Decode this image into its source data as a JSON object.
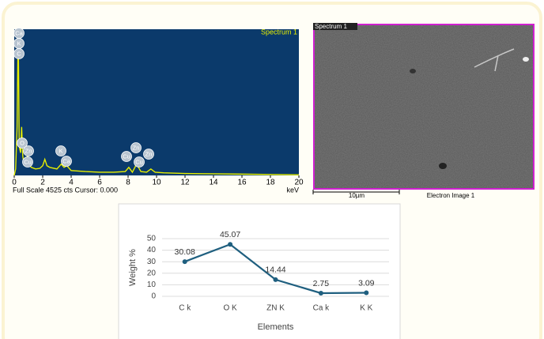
{
  "chart_data": [
    {
      "type": "spectrum",
      "title": "Spectrum 1",
      "x_label": "keV",
      "footer": "Full Scale 4525 cts Cursor: 0.000",
      "color": "#e8f000",
      "background": "#0b3a6b",
      "x": [
        0,
        0.1,
        0.2,
        0.28,
        0.35,
        0.45,
        0.52,
        0.6,
        0.7,
        0.85,
        0.93,
        1.0,
        1.2,
        1.5,
        1.8,
        2.0,
        2.15,
        2.3,
        2.5,
        3.0,
        3.3,
        3.5,
        3.7,
        4.0,
        5,
        6,
        7,
        7.8,
        8.05,
        8.3,
        8.6,
        8.9,
        9.3,
        9.6,
        9.9,
        10.5,
        12,
        14,
        16,
        18,
        20
      ],
      "values": [
        0,
        200,
        1500,
        4525,
        900,
        700,
        1500,
        600,
        300,
        500,
        600,
        350,
        250,
        200,
        220,
        300,
        500,
        300,
        250,
        200,
        350,
        250,
        300,
        150,
        120,
        100,
        100,
        120,
        250,
        100,
        350,
        120,
        100,
        200,
        100,
        80,
        60,
        50,
        40,
        30,
        20
      ],
      "xlim": [
        0,
        20
      ],
      "xticks": [
        0,
        2,
        4,
        6,
        8,
        10,
        12,
        14,
        16,
        18,
        20
      ],
      "ylim": [
        0,
        4525
      ],
      "peak_labels": [
        "Ca",
        "K",
        "C",
        "O",
        "Zn",
        "Cu",
        "K",
        "Ca",
        "Zn",
        "Cu",
        "Cu",
        "Zn"
      ]
    },
    {
      "type": "line",
      "x_label": "Elements",
      "y_label": "Weight %",
      "color": "#1f5f7f",
      "categories": [
        "C k",
        "O K",
        "ZN K",
        "Ca k",
        "K K"
      ],
      "values": [
        30.08,
        45.07,
        14.44,
        2.75,
        3.09
      ],
      "ylim": [
        0,
        50
      ],
      "yticks": [
        0,
        10,
        20,
        30,
        40,
        50
      ],
      "grid": true
    }
  ],
  "image": {
    "label": "Spectrum 1",
    "scale": "10µm",
    "caption": "Electron Image 1",
    "border": "#d020d0"
  }
}
